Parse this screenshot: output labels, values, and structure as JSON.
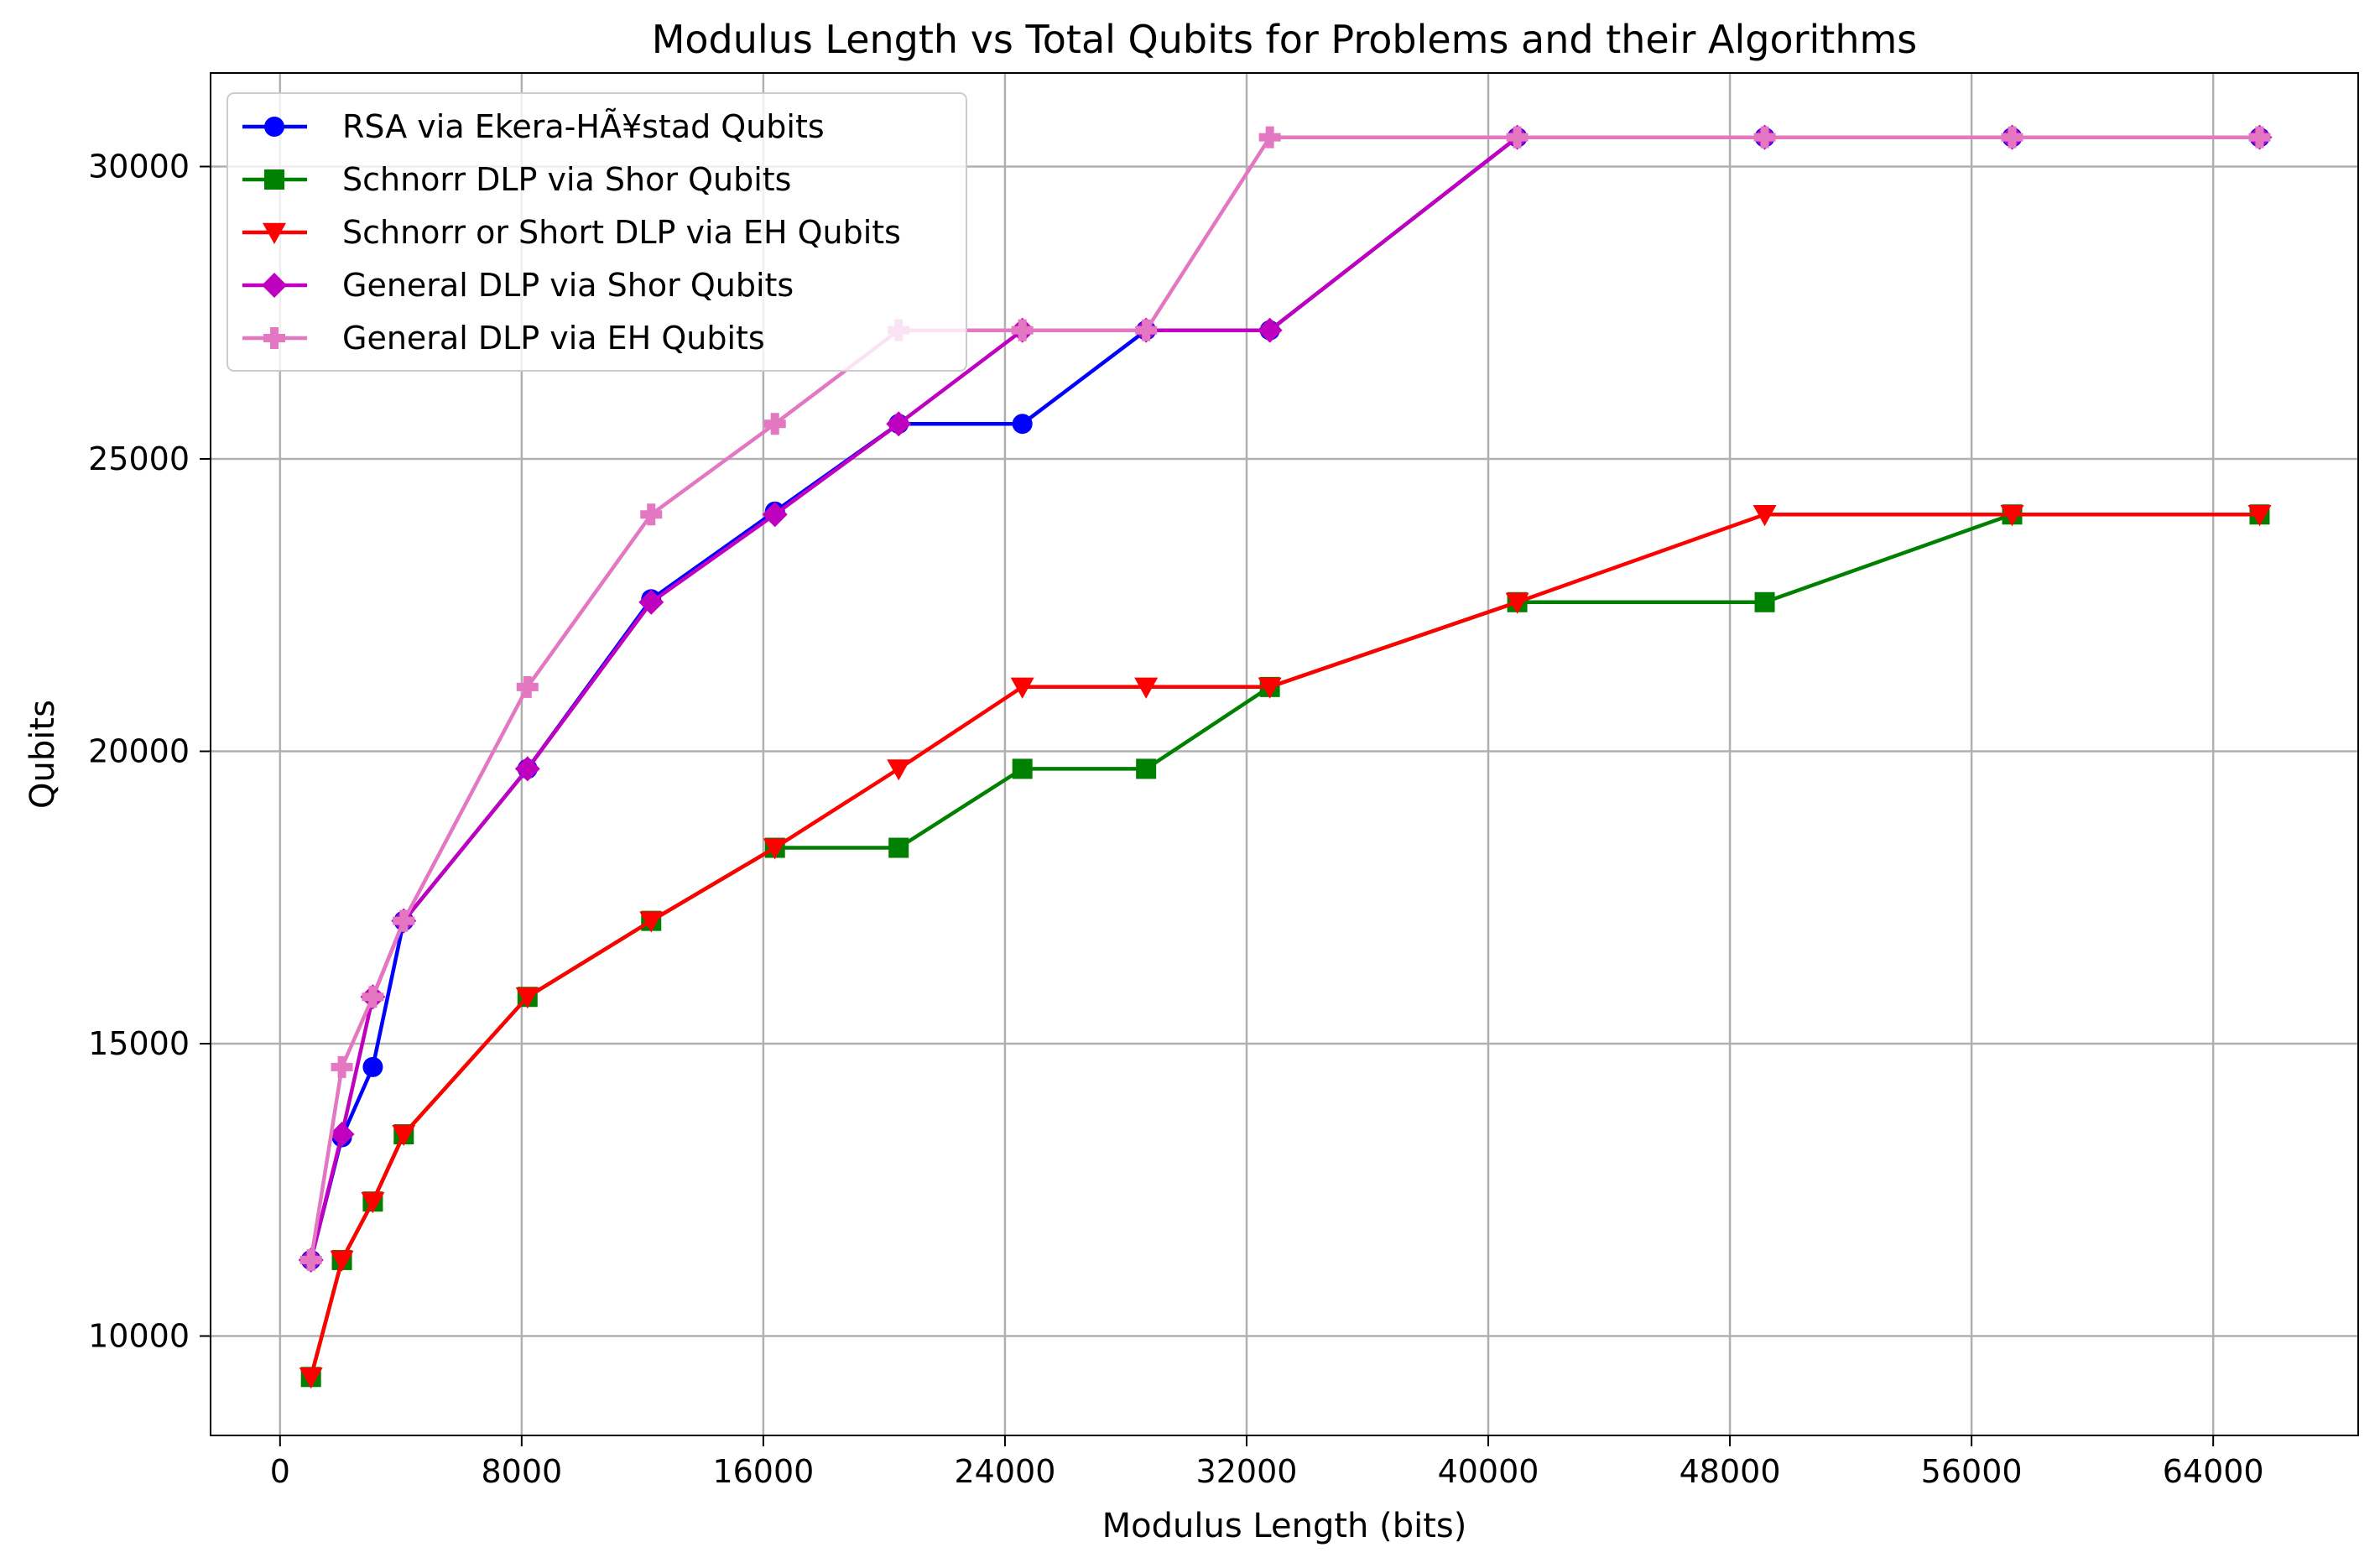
{
  "chart_data": {
    "type": "line",
    "title": "Modulus Length vs Total Qubits for Problems and their Algorithms",
    "xlabel": "Modulus Length (bits)",
    "ylabel": "Qubits",
    "xlim": [
      -2300,
      68800
    ],
    "ylim": [
      8300,
      31600
    ],
    "xticks": [
      0,
      8000,
      16000,
      24000,
      32000,
      40000,
      48000,
      56000,
      64000
    ],
    "yticks": [
      10000,
      15000,
      20000,
      25000,
      30000
    ],
    "grid": true,
    "legend_position": "upper-left",
    "series": [
      {
        "name": "RSA via Ekera-HÃ¥stad Qubits",
        "color": "#0000ff",
        "marker": "circle",
        "x": [
          1024,
          2048,
          3072,
          4096,
          8192,
          12288,
          16384,
          20480,
          24576,
          28672,
          32768,
          40960,
          49152,
          57344,
          65536
        ],
        "y": [
          11300,
          13400,
          14600,
          17100,
          19700,
          22600,
          24100,
          25600,
          25600,
          27200,
          27200,
          30500,
          30500,
          30500,
          30500
        ]
      },
      {
        "name": "Schnorr DLP via Shor Qubits",
        "color": "#008000",
        "marker": "square",
        "x": [
          1024,
          2048,
          3072,
          4096,
          8192,
          12288,
          16384,
          20480,
          24576,
          28672,
          32768,
          40960,
          49152,
          57344,
          65536
        ],
        "y": [
          9300,
          11300,
          12300,
          13450,
          15800,
          17100,
          18350,
          18350,
          19700,
          19700,
          21100,
          22550,
          22550,
          24050,
          24050
        ]
      },
      {
        "name": "Schnorr or Short DLP via EH Qubits",
        "color": "#ff0000",
        "marker": "triangle-down",
        "x": [
          1024,
          2048,
          3072,
          4096,
          8192,
          12288,
          16384,
          20480,
          24576,
          28672,
          32768,
          40960,
          49152,
          57344,
          65536
        ],
        "y": [
          9300,
          11300,
          12300,
          13450,
          15800,
          17100,
          18350,
          19700,
          21100,
          21100,
          21100,
          22550,
          24050,
          24050,
          24050
        ]
      },
      {
        "name": "General DLP via Shor Qubits",
        "color": "#bf00bf",
        "marker": "diamond",
        "x": [
          1024,
          2048,
          3072,
          4096,
          8192,
          12288,
          16384,
          20480,
          24576,
          28672,
          32768,
          40960,
          49152,
          57344,
          65536
        ],
        "y": [
          11300,
          13450,
          15800,
          17100,
          19700,
          22550,
          24050,
          25600,
          27200,
          27200,
          27200,
          30500,
          30500,
          30500,
          30500
        ]
      },
      {
        "name": "General DLP via EH Qubits",
        "color": "#e377c2",
        "marker": "plus",
        "x": [
          1024,
          2048,
          3072,
          4096,
          8192,
          12288,
          16384,
          20480,
          24576,
          28672,
          32768,
          40960,
          49152,
          57344,
          65536
        ],
        "y": [
          11300,
          14600,
          15800,
          17100,
          21100,
          24050,
          25600,
          27200,
          27200,
          27200,
          30500,
          30500,
          30500,
          30500,
          30500
        ]
      }
    ]
  }
}
